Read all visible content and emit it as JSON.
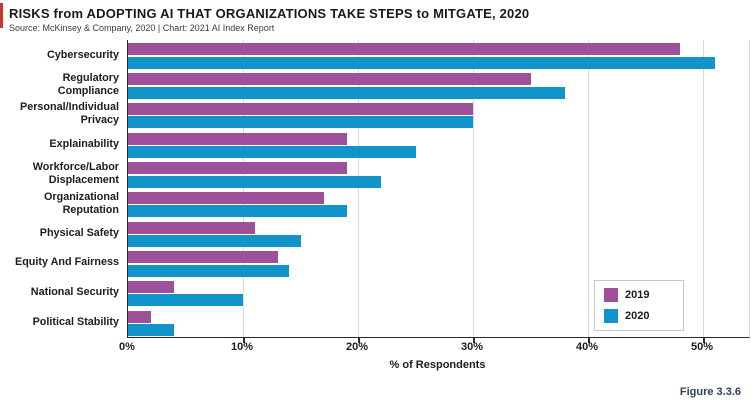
{
  "header": {
    "title": "RISKS from ADOPTING AI THAT ORGANIZATIONS TAKE STEPS to MITGATE, 2020",
    "source": "Source: McKinsey & Company, 2020 | Chart: 2021 AI Index Report"
  },
  "footer": {
    "figure_label": "Figure 3.3.6"
  },
  "colors": {
    "accent_red": "#c8372d",
    "purple_2019": "#9e519a",
    "blue_2020": "#1094ca",
    "grid": "#d9d9d9",
    "axis": "#2b2b2b",
    "figure_label": "#31405a"
  },
  "chart_data": {
    "type": "bar",
    "orientation": "horizontal",
    "title": "RISKS from ADOPTING AI THAT ORGANIZATIONS TAKE STEPS to MITGATE, 2020",
    "categories": [
      "Cybersecurity",
      "Regulatory Compliance",
      "Personal/Individual Privacy",
      "Explainability",
      "Workforce/Labor Displacement",
      "Organizational Reputation",
      "Physical Safety",
      "Equity And Fairness",
      "National Security",
      "Political Stability"
    ],
    "series": [
      {
        "name": "2019",
        "color": "purple_2019",
        "values": [
          48,
          35,
          30,
          19,
          19,
          17,
          11,
          13,
          4,
          2
        ]
      },
      {
        "name": "2020",
        "color": "blue_2020",
        "values": [
          51,
          38,
          30,
          25,
          22,
          19,
          15,
          14,
          10,
          4
        ]
      }
    ],
    "xlabel": "% of Respondents",
    "ticks": [
      0,
      10,
      20,
      30,
      40,
      50
    ],
    "tick_suffix": "%",
    "xlim": [
      0,
      54
    ],
    "grid": true,
    "legend_position": "bottom-right"
  }
}
